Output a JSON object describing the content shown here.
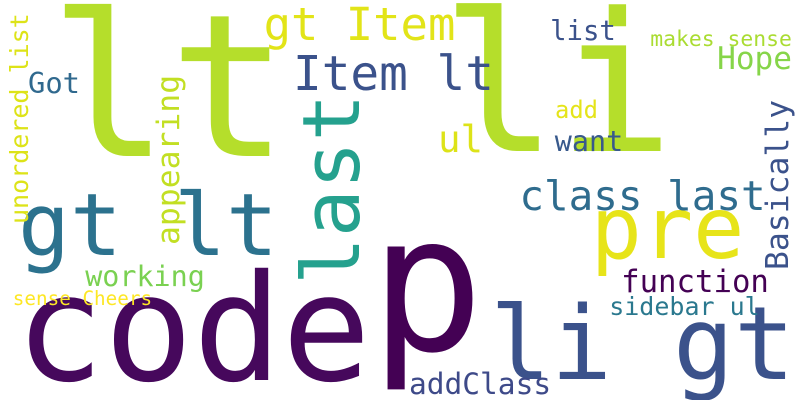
{
  "words": [
    {
      "text": "p",
      "color": "#440154",
      "vertical": false
    },
    {
      "text": "lt",
      "color": "#b5de2b",
      "vertical": false
    },
    {
      "text": "li",
      "color": "#b5de2b",
      "vertical": false
    },
    {
      "text": "code",
      "color": "#46085c",
      "vertical": false
    },
    {
      "text": "li gt",
      "color": "#3b528b",
      "vertical": false
    },
    {
      "text": "gt lt",
      "color": "#2c728e",
      "vertical": false
    },
    {
      "text": "pre",
      "color": "#e7e419",
      "vertical": false
    },
    {
      "text": "last",
      "color": "#25a18e",
      "vertical": true
    },
    {
      "text": "Item lt",
      "color": "#3b528b",
      "vertical": false
    },
    {
      "text": "gt Item",
      "color": "#e2e418",
      "vertical": false
    },
    {
      "text": "class last",
      "color": "#2f6c8e",
      "vertical": false
    },
    {
      "text": "addClass",
      "color": "#3e4a89",
      "vertical": false
    },
    {
      "text": "ul",
      "color": "#dde318",
      "vertical": false
    },
    {
      "text": "function",
      "color": "#440154",
      "vertical": false
    },
    {
      "text": "working",
      "color": "#7ad151",
      "vertical": false
    },
    {
      "text": "want",
      "color": "#38598c",
      "vertical": false
    },
    {
      "text": "appearing",
      "color": "#c2df23",
      "vertical": true
    },
    {
      "text": "Basically",
      "color": "#3b528b",
      "vertical": true
    },
    {
      "text": "sidebar ul",
      "color": "#2a788e",
      "vertical": false
    },
    {
      "text": "add",
      "color": "#e5e419",
      "vertical": false
    },
    {
      "text": "list",
      "color": "#3b528b",
      "vertical": false
    },
    {
      "text": "Hope",
      "color": "#86d549",
      "vertical": false
    },
    {
      "text": "Got",
      "color": "#30698e",
      "vertical": false
    },
    {
      "text": "unordered list",
      "color": "#dde318",
      "vertical": true
    },
    {
      "text": "makes sense",
      "color": "#aadc32",
      "vertical": false
    },
    {
      "text": "sense Cheers",
      "color": "#fde725",
      "vertical": false
    }
  ]
}
